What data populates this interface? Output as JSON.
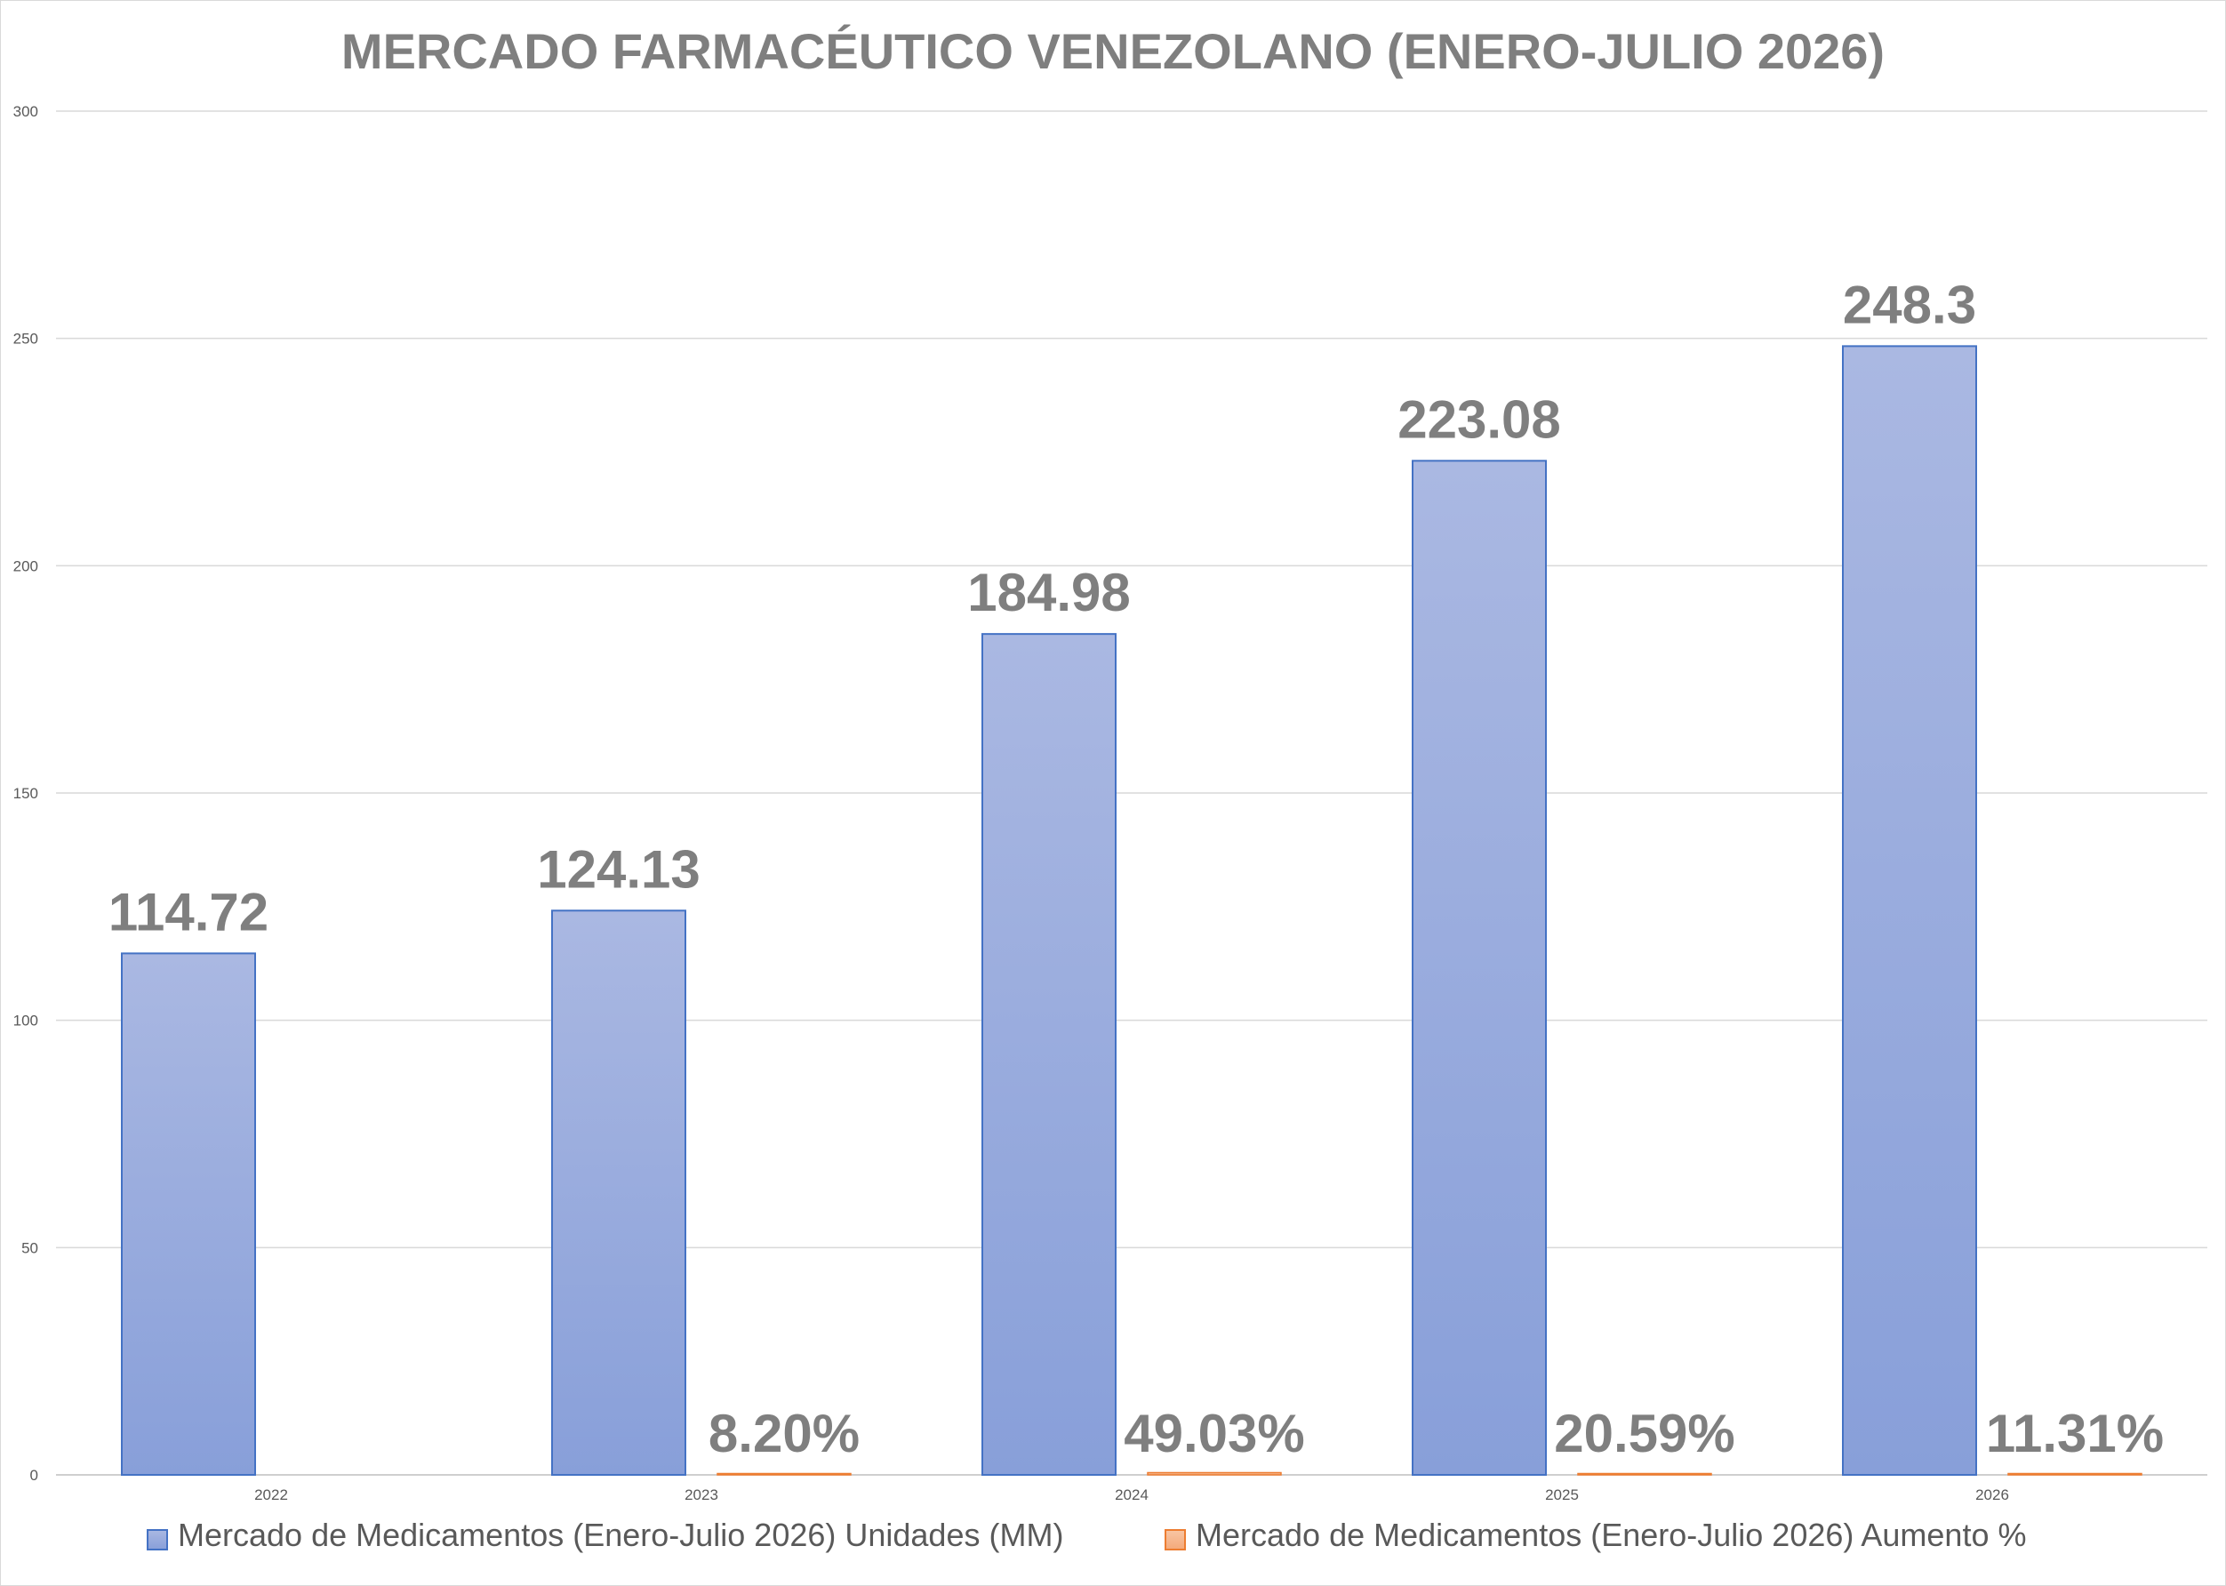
{
  "chart_data": {
    "type": "bar",
    "title": "MERCADO FARMACÉUTICO VENEZOLANO (ENERO-JULIO 2026)",
    "categories": [
      "2022",
      "2023",
      "2024",
      "2025",
      "2026"
    ],
    "ylim": [
      0,
      300
    ],
    "yticks": [
      "0",
      "50",
      "100",
      "150",
      "200",
      "250",
      "300"
    ],
    "grid": true,
    "legend": "bottom",
    "series": [
      {
        "name": "Mercado de Medicamentos (Enero-Julio 2026) Unidades (MM)",
        "values": [
          114.72,
          124.13,
          184.98,
          223.08,
          248.3
        ],
        "labels": [
          "114.72",
          "124.13",
          "184.98",
          "223.08",
          "248.3"
        ],
        "color": "#8ea3db",
        "border": "#4472c4"
      },
      {
        "name": "Mercado de Medicamentos (Enero-Julio 2026) Aumento %",
        "values": [
          null,
          0.082,
          0.4903,
          0.2059,
          0.1131
        ],
        "labels": [
          "",
          "8.20%",
          "49.03%",
          "20.59%",
          "11.31%"
        ],
        "color": "#f4b183",
        "border": "#ed7d31"
      }
    ]
  }
}
